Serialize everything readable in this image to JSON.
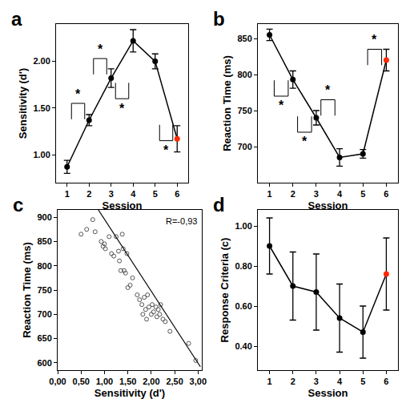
{
  "chart_data": [
    {
      "type": "line",
      "title": "a",
      "x_label": "Session",
      "y_label": "Sensitivity (d')",
      "x": [
        1,
        2,
        3,
        4,
        5,
        6
      ],
      "values": [
        0.87,
        1.37,
        1.82,
        2.22,
        2.0,
        1.17
      ],
      "errors": [
        0.07,
        0.06,
        0.1,
        0.12,
        0.08,
        0.14
      ],
      "color": "#000000",
      "colors": [
        "#000000",
        "#000000",
        "#000000",
        "#000000",
        "#000000",
        "#ff2a00"
      ],
      "marker": "circle",
      "xlim": [
        0.5,
        6.5
      ],
      "xticks": [
        1,
        2,
        3,
        4,
        5,
        6
      ],
      "ylim": [
        0.7,
        2.4
      ],
      "yticks": [
        {
          "value": 1,
          "label": "1.00"
        },
        {
          "value": 1.5,
          "label": "1.50"
        },
        {
          "value": 2,
          "label": "2.00"
        }
      ],
      "grid": false,
      "comparisons": [
        {
          "between": [
            1,
            2
          ],
          "y": 1.55,
          "text": "*"
        },
        {
          "between": [
            2,
            3
          ],
          "y": 2.03,
          "text": "*"
        },
        {
          "between": [
            3,
            4
          ],
          "y": 1.6,
          "text": "*"
        },
        {
          "between": [
            5,
            6
          ],
          "y": 1.15,
          "text": "*"
        }
      ]
    },
    {
      "type": "line",
      "title": "b",
      "x_label": "Session",
      "y_label": "Reaction Time (ms)",
      "x": [
        1,
        2,
        3,
        4,
        5,
        6
      ],
      "values": [
        855,
        793,
        740,
        685,
        690,
        820
      ],
      "errors": [
        8,
        12,
        10,
        12,
        6,
        15
      ],
      "color": "#000000",
      "colors": [
        "#000000",
        "#000000",
        "#000000",
        "#000000",
        "#000000",
        "#ff2a00"
      ],
      "marker": "circle",
      "xlim": [
        0.5,
        6.5
      ],
      "xticks": [
        1,
        2,
        3,
        4,
        5,
        6
      ],
      "ylim": [
        650,
        870
      ],
      "yticks": [
        700,
        750,
        800,
        850
      ],
      "grid": false,
      "comparisons": [
        {
          "between": [
            1,
            2
          ],
          "y": 770,
          "text": "*"
        },
        {
          "between": [
            2,
            3
          ],
          "y": 720,
          "text": "*"
        },
        {
          "between": [
            3,
            4
          ],
          "y": 765,
          "text": "*"
        },
        {
          "between": [
            5,
            6
          ],
          "y": 835,
          "text": "*"
        }
      ]
    },
    {
      "type": "scatter",
      "title": "c",
      "x_label": "Sensitivity (d')",
      "y_label": "Reaction Time (ms)",
      "x": [
        0.5,
        0.62,
        0.75,
        0.8,
        0.93,
        0.97,
        1.0,
        1.02,
        1.1,
        1.15,
        1.2,
        1.25,
        1.3,
        1.32,
        1.35,
        1.38,
        1.4,
        1.42,
        1.45,
        1.48,
        1.5,
        1.55,
        1.6,
        1.7,
        1.75,
        1.8,
        1.82,
        1.85,
        1.88,
        1.9,
        1.92,
        1.95,
        2.0,
        2.02,
        2.05,
        2.1,
        2.12,
        2.15,
        2.18,
        2.2,
        2.25,
        2.3,
        2.4,
        2.8,
        2.95
      ],
      "values": [
        865,
        875,
        895,
        870,
        850,
        840,
        845,
        835,
        860,
        825,
        820,
        860,
        830,
        810,
        790,
        865,
        835,
        790,
        785,
        825,
        755,
        760,
        775,
        740,
        730,
        720,
        700,
        735,
        710,
        690,
        740,
        715,
        700,
        720,
        705,
        715,
        695,
        710,
        700,
        720,
        690,
        685,
        665,
        640,
        605
      ],
      "color": "#555555",
      "marker": "circle-open",
      "fit": {
        "x": [
          0.87,
          3.05
        ],
        "y": [
          915,
          592
        ]
      },
      "annotations": [
        "R=-0,93"
      ],
      "xlim": [
        0,
        3.08
      ],
      "xticks": [
        {
          "value": 0,
          "label": "0,00"
        },
        {
          "value": 0.5,
          "label": "0,50"
        },
        {
          "value": 1,
          "label": "1,00"
        },
        {
          "value": 1.5,
          "label": "1,50"
        },
        {
          "value": 2,
          "label": "2,00"
        },
        {
          "value": 2.5,
          "label": "2,50"
        },
        {
          "value": 3,
          "label": "3,00"
        }
      ],
      "ylim": [
        585,
        915
      ],
      "yticks": [
        600,
        650,
        700,
        750,
        800,
        850,
        900
      ],
      "grid": false
    },
    {
      "type": "line",
      "title": "d",
      "x_label": "Session",
      "y_label": "Response Criteria (c)",
      "x": [
        1,
        2,
        3,
        4,
        5,
        6
      ],
      "values": [
        0.9,
        0.7,
        0.67,
        0.54,
        0.47,
        0.76
      ],
      "errors": [
        0.14,
        0.17,
        0.19,
        0.17,
        0.13,
        0.18
      ],
      "color": "#000000",
      "colors": [
        "#000000",
        "#000000",
        "#000000",
        "#000000",
        "#000000",
        "#ff2a00"
      ],
      "marker": "circle",
      "xlim": [
        0.5,
        6.5
      ],
      "xticks": [
        1,
        2,
        3,
        4,
        5,
        6
      ],
      "ylim": [
        0.28,
        1.08
      ],
      "yticks": [
        {
          "value": 0.4,
          "label": "0.40"
        },
        {
          "value": 0.6,
          "label": "0.60"
        },
        {
          "value": 0.8,
          "label": "0.80"
        },
        {
          "value": 1,
          "label": "1.00"
        }
      ],
      "grid": false
    }
  ]
}
